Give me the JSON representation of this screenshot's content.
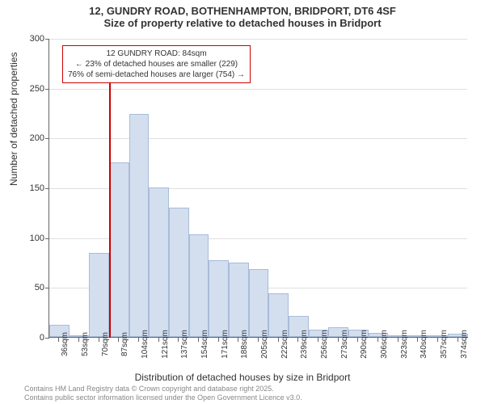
{
  "title": {
    "line1": "12, GUNDRY ROAD, BOTHENHAMPTON, BRIDPORT, DT6 4SF",
    "line2": "Size of property relative to detached houses in Bridport"
  },
  "chart": {
    "type": "histogram",
    "bar_color": "#d3deef",
    "bar_border_color": "#a9bcd9",
    "background_color": "#ffffff",
    "grid_color": "#e0e0e0",
    "axis_color": "#666666",
    "y_axis": {
      "label": "Number of detached properties",
      "min": 0,
      "max": 300,
      "ticks": [
        0,
        50,
        100,
        150,
        200,
        250,
        300
      ],
      "label_fontsize": 12,
      "tick_fontsize": 11
    },
    "x_axis": {
      "label": "Distribution of detached houses by size in Bridport",
      "ticks": [
        "36sqm",
        "53sqm",
        "70sqm",
        "87sqm",
        "104sqm",
        "121sqm",
        "137sqm",
        "154sqm",
        "171sqm",
        "188sqm",
        "205sqm",
        "222sqm",
        "239sqm",
        "256sqm",
        "273sqm",
        "290sqm",
        "306sqm",
        "323sqm",
        "340sqm",
        "357sqm",
        "374sqm"
      ],
      "label_fontsize": 12,
      "tick_fontsize": 10
    },
    "bars": [
      12,
      0,
      84,
      175,
      224,
      150,
      130,
      103,
      77,
      75,
      68,
      44,
      21,
      7,
      10,
      7,
      4,
      2,
      2,
      2,
      3
    ],
    "annotation": {
      "line1": "12 GUNDRY ROAD: 84sqm",
      "line2": "← 23% of detached houses are smaller (229)",
      "line3": "76% of semi-detached houses are larger (754) →",
      "border_color": "#cc0000",
      "position_x_ratio": 0.15,
      "fontsize": 10
    },
    "marker": {
      "color": "#cc0000",
      "x_value": 84,
      "x_position_ratio": 0.142
    }
  },
  "footer": {
    "line1": "Contains HM Land Registry data © Crown copyright and database right 2025.",
    "line2": "Contains public sector information licensed under the Open Government Licence v3.0."
  }
}
